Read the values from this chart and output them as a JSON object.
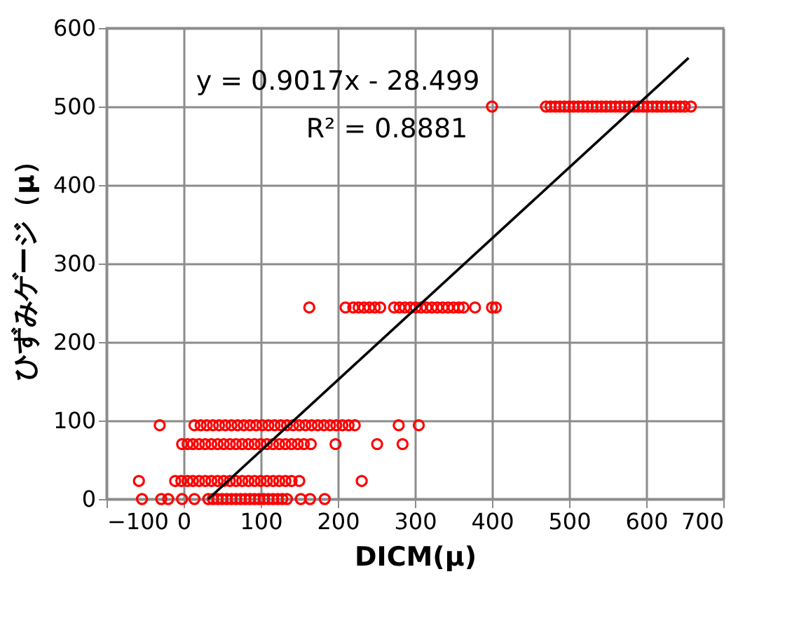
{
  "chart_data": {
    "type": "scatter",
    "xlabel": "DICM(μ)",
    "ylabel": "ひずみゲージ（μ）",
    "xlim": [
      -100,
      700
    ],
    "xticks": [
      -100,
      0,
      100,
      200,
      300,
      400,
      500,
      600,
      700
    ],
    "ylim": [
      0,
      600
    ],
    "yticks": [
      0,
      100,
      200,
      300,
      400,
      500,
      600
    ],
    "grid": true,
    "annotations": [
      "y = 0.9017x - 28.499",
      "R² = 0.8881"
    ],
    "series": [
      {
        "color": "#ff0000",
        "marker": "circle",
        "x": [
          -54,
          -29,
          -20,
          -2,
          14,
          32,
          38,
          44,
          50,
          56,
          62,
          68,
          74,
          80,
          86,
          92,
          98,
          104,
          110,
          116,
          122,
          128,
          134,
          152,
          164,
          183,
          -58,
          -11,
          -3,
          5,
          12,
          20,
          28,
          36,
          44,
          52,
          60,
          68,
          76,
          84,
          92,
          100,
          108,
          116,
          124,
          132,
          140,
          150,
          231,
          -2,
          5,
          12,
          20,
          28,
          36,
          44,
          52,
          60,
          68,
          76,
          84,
          92,
          100,
          108,
          116,
          124,
          132,
          140,
          148,
          156,
          165,
          197,
          251,
          284,
          -31,
          14,
          22,
          30,
          38,
          46,
          54,
          62,
          70,
          78,
          86,
          94,
          102,
          110,
          118,
          126,
          134,
          142,
          150,
          158,
          166,
          174,
          182,
          190,
          198,
          206,
          214,
          222,
          279,
          305,
          163,
          210,
          220,
          227,
          234,
          241,
          248,
          255,
          273,
          280,
          287,
          294,
          301,
          308,
          315,
          322,
          329,
          336,
          343,
          350,
          357,
          363,
          378,
          400,
          405,
          400,
          470,
          476,
          482,
          488,
          494,
          500,
          506,
          512,
          518,
          524,
          530,
          536,
          542,
          548,
          554,
          560,
          566,
          572,
          578,
          584,
          590,
          596,
          602,
          608,
          614,
          620,
          626,
          632,
          638,
          644,
          650,
          658
        ],
        "values": [
          0,
          0,
          0,
          0,
          0,
          0,
          0,
          0,
          0,
          0,
          0,
          0,
          0,
          0,
          0,
          0,
          0,
          0,
          0,
          0,
          0,
          0,
          0,
          0,
          0,
          0,
          23,
          23,
          23,
          23,
          23,
          23,
          23,
          23,
          23,
          23,
          23,
          23,
          23,
          23,
          23,
          23,
          23,
          23,
          23,
          23,
          23,
          23,
          23,
          70,
          70,
          70,
          70,
          70,
          70,
          70,
          70,
          70,
          70,
          70,
          70,
          70,
          70,
          70,
          70,
          70,
          70,
          70,
          70,
          70,
          70,
          70,
          70,
          70,
          94,
          94,
          94,
          94,
          94,
          94,
          94,
          94,
          94,
          94,
          94,
          94,
          94,
          94,
          94,
          94,
          94,
          94,
          94,
          94,
          94,
          94,
          94,
          94,
          94,
          94,
          94,
          94,
          94,
          94,
          244,
          244,
          244,
          244,
          244,
          244,
          244,
          244,
          244,
          244,
          244,
          244,
          244,
          244,
          244,
          244,
          244,
          244,
          244,
          244,
          244,
          244,
          244,
          244,
          244,
          500,
          500,
          500,
          500,
          500,
          500,
          500,
          500,
          500,
          500,
          500,
          500,
          500,
          500,
          500,
          500,
          500,
          500,
          500,
          500,
          500,
          500,
          500,
          500,
          500,
          500,
          500,
          500,
          500,
          500,
          500,
          500,
          500
        ]
      },
      {
        "type": "line",
        "color": "#000000",
        "x": [
          32,
          655
        ],
        "values": [
          0,
          562
        ]
      }
    ]
  }
}
